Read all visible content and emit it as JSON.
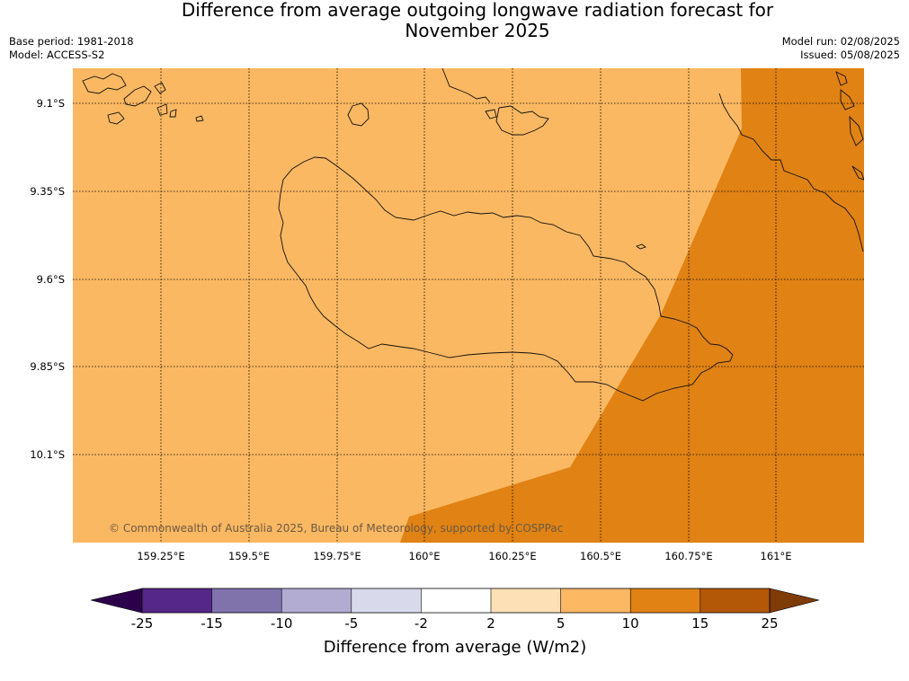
{
  "header": {
    "title_line1": "Difference from average outgoing longwave radiation forecast for",
    "title_line2": "November 2025",
    "base_period": "Base period: 1981-2018",
    "model": "Model: ACCESS-S2",
    "model_run": "Model run: 02/08/2025",
    "issued": "Issued: 05/08/2025"
  },
  "map": {
    "lat_labels": [
      "9.1°S",
      "9.35°S",
      "9.6°S",
      "9.85°S",
      "10.1°S"
    ],
    "lon_labels": [
      "159.25°E",
      "159.5°E",
      "159.75°E",
      "160°E",
      "160.25°E",
      "160.5°E",
      "160.75°E",
      "161°E"
    ],
    "copyright": "© Commonwealth of Australia 2025, Bureau of Meteorology, supported by COSPPac",
    "fill_colors": {
      "band_5_10": "#fbb862",
      "band_10_15": "#e08214"
    }
  },
  "colorbar": {
    "title": "Difference from average (W/m2)",
    "ticks": [
      "-25",
      "-15",
      "-10",
      "-5",
      "-2",
      "2",
      "5",
      "10",
      "15",
      "25"
    ],
    "colors": [
      "#2d004b",
      "#542788",
      "#8073ac",
      "#b2abd2",
      "#d8daeb",
      "#ffffff",
      "#fee0b6",
      "#fdb863",
      "#e08214",
      "#b35806",
      "#7f3b08"
    ]
  }
}
